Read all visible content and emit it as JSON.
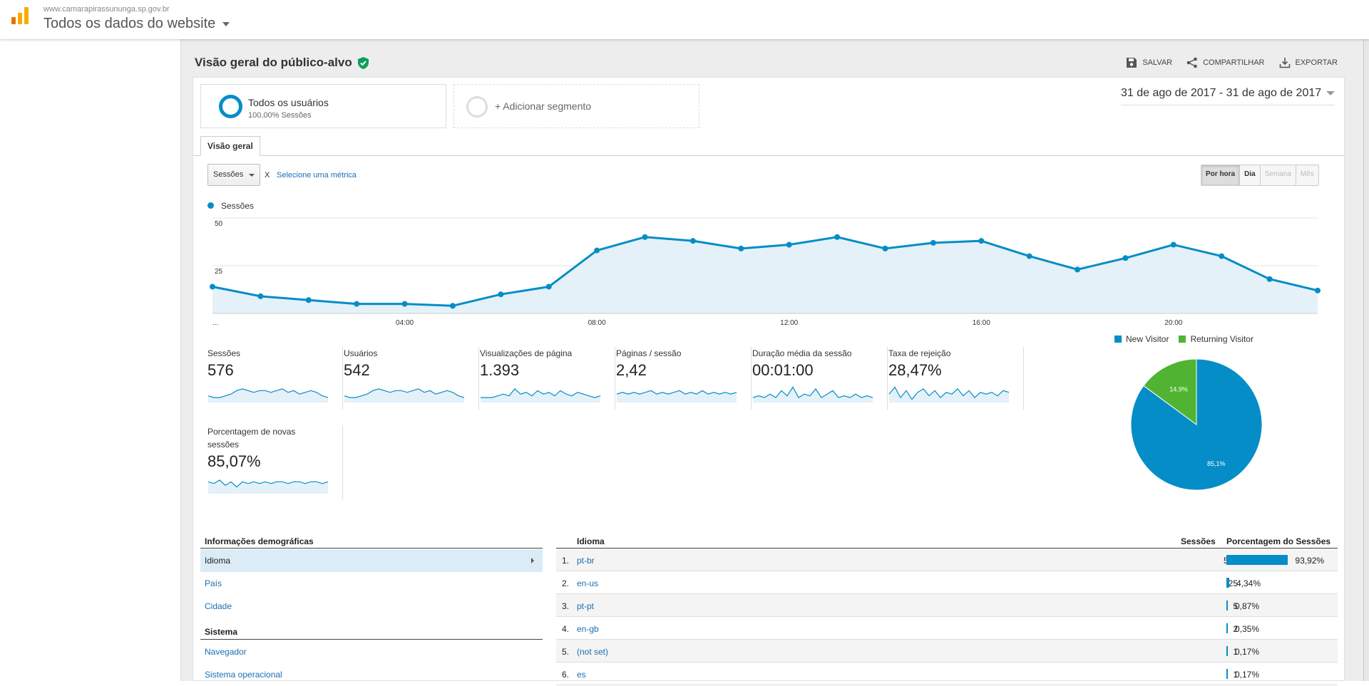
{
  "header": {
    "account_url": "www.camarapirassununga.sp.gov.br",
    "property_view": "Todos os dados do website"
  },
  "page": {
    "title": "Visão geral do público-alvo",
    "actions": {
      "save": "SALVAR",
      "share": "COMPARTILHAR",
      "export": "EXPORTAR"
    }
  },
  "segments": {
    "active_name": "Todos os usuários",
    "active_sub": "100,00% Sessões",
    "add_label": "+ Adicionar segmento"
  },
  "date_range": "31 de ago de 2017 - 31 de ago de 2017",
  "tabs": {
    "overview": "Visão geral"
  },
  "controls": {
    "metric_selected": "Sessões",
    "vs_separator": "X",
    "select_metric": "Selecione uma métrica",
    "time_buttons": [
      {
        "label": "Por hora",
        "state": "active"
      },
      {
        "label": "Dia",
        "state": "enabled"
      },
      {
        "label": "Semana",
        "state": "disabled"
      },
      {
        "label": "Mês",
        "state": "disabled"
      }
    ]
  },
  "chart_data": [
    {
      "type": "area",
      "series": [
        {
          "name": "Sessões",
          "color": "#058dc7",
          "values": [
            14,
            9,
            7,
            5,
            5,
            4,
            10,
            14,
            33,
            40,
            38,
            34,
            36,
            40,
            34,
            37,
            38,
            30,
            23,
            29,
            36,
            30,
            18,
            12
          ]
        }
      ],
      "x": [
        "...",
        "01:00",
        "02:00",
        "03:00",
        "04:00",
        "05:00",
        "06:00",
        "07:00",
        "08:00",
        "09:00",
        "10:00",
        "11:00",
        "12:00",
        "13:00",
        "14:00",
        "15:00",
        "16:00",
        "17:00",
        "18:00",
        "19:00",
        "20:00",
        "21:00",
        "22:00",
        "23:00"
      ],
      "x_tick_labels": [
        "...",
        "04:00",
        "08:00",
        "12:00",
        "16:00",
        "20:00"
      ],
      "y_tick_labels": [
        "25",
        "50"
      ],
      "ylim": [
        0,
        50
      ],
      "grid": true,
      "legend": "top-left"
    },
    {
      "type": "pie",
      "categories": [
        "New Visitor",
        "Returning Visitor"
      ],
      "values": [
        85.1,
        14.9
      ],
      "labels": [
        "85,1%",
        "14,9%"
      ],
      "colors": [
        "#058dc7",
        "#50b432"
      ],
      "legend": "top"
    }
  ],
  "scorecards": [
    {
      "label": "Sessões",
      "value": "576",
      "spark": [
        3,
        2,
        2,
        3,
        4,
        6,
        7,
        6,
        5,
        6,
        6,
        5,
        6,
        7,
        5,
        6,
        4,
        5,
        6,
        5,
        3,
        2
      ]
    },
    {
      "label": "Usuários",
      "value": "542",
      "spark": [
        3,
        2,
        2,
        3,
        4,
        6,
        7,
        6,
        5,
        6,
        6,
        5,
        6,
        7,
        5,
        6,
        4,
        5,
        6,
        5,
        3,
        2
      ]
    },
    {
      "label": "Visualizações de página",
      "value": "1.393",
      "spark": [
        2,
        2,
        2,
        3,
        4,
        3,
        7,
        4,
        5,
        3,
        6,
        4,
        5,
        3,
        6,
        4,
        3,
        5,
        4,
        3,
        2,
        3
      ]
    },
    {
      "label": "Páginas / sessão",
      "value": "2,42",
      "spark": [
        4,
        5,
        4,
        5,
        4,
        5,
        6,
        4,
        5,
        4,
        5,
        6,
        4,
        5,
        4,
        6,
        4,
        5,
        4,
        5,
        4,
        5
      ]
    },
    {
      "label": "Duração média da sessão",
      "value": "00:01:00",
      "spark": [
        2,
        3,
        2,
        4,
        2,
        6,
        3,
        8,
        2,
        4,
        3,
        7,
        2,
        4,
        6,
        2,
        3,
        2,
        4,
        2,
        3,
        2
      ]
    },
    {
      "label": "Taxa de rejeição",
      "value": "28,47%",
      "spark": [
        4,
        8,
        2,
        6,
        1,
        5,
        7,
        3,
        6,
        2,
        5,
        4,
        7,
        3,
        6,
        2,
        5,
        4,
        5,
        3,
        6,
        5
      ]
    },
    {
      "label": "Porcentagem de novas sessões",
      "value": "85,07%",
      "spark": [
        6,
        5,
        7,
        4,
        6,
        3,
        6,
        5,
        6,
        5,
        6,
        5,
        6,
        6,
        5,
        6,
        6,
        5,
        6,
        6,
        5,
        6
      ]
    }
  ],
  "demographics": {
    "section_title": "Informações demográficas",
    "items": [
      "Idioma",
      "País",
      "Cidade"
    ],
    "system_title": "Sistema",
    "system_items": [
      "Navegador",
      "Sistema operacional"
    ]
  },
  "language_table": {
    "col_language": "Idioma",
    "col_sessions": "Sessões",
    "col_percent": "Porcentagem do Sessões",
    "rows": [
      {
        "idx": "1.",
        "lang": "pt-br",
        "sessions": "541",
        "pct": "93,92%",
        "frac": 0.9392
      },
      {
        "idx": "2.",
        "lang": "en-us",
        "sessions": "25",
        "pct": "4,34%",
        "frac": 0.0434
      },
      {
        "idx": "3.",
        "lang": "pt-pt",
        "sessions": "5",
        "pct": "0,87%",
        "frac": 0.0087
      },
      {
        "idx": "4.",
        "lang": "en-gb",
        "sessions": "2",
        "pct": "0,35%",
        "frac": 0.0035
      },
      {
        "idx": "5.",
        "lang": "(not set)",
        "sessions": "1",
        "pct": "0,17%",
        "frac": 0.0017
      },
      {
        "idx": "6.",
        "lang": "es",
        "sessions": "1",
        "pct": "0,17%",
        "frac": 0.0017
      }
    ]
  }
}
